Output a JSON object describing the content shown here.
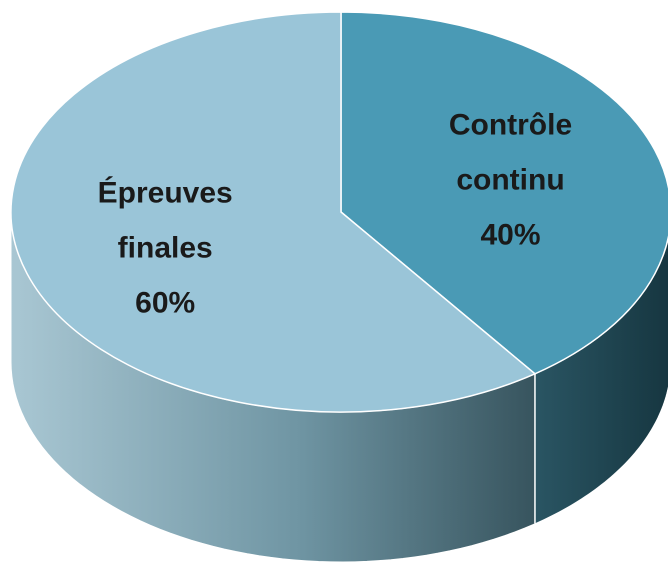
{
  "chart_data": {
    "type": "pie",
    "style": "3d",
    "slices": [
      {
        "label_lines": [
          "Contrôle",
          "continu"
        ],
        "value_label": "40%",
        "value": 40,
        "color": "#4a9ab5"
      },
      {
        "label_lines": [
          "Épreuves",
          "finales"
        ],
        "value_label": "60%",
        "value": 60,
        "color": "#9ac5d8"
      }
    ]
  },
  "colors": {
    "side_dark": "#1f4652",
    "side_light": "#6a9aab",
    "edge": "#ffffff"
  }
}
